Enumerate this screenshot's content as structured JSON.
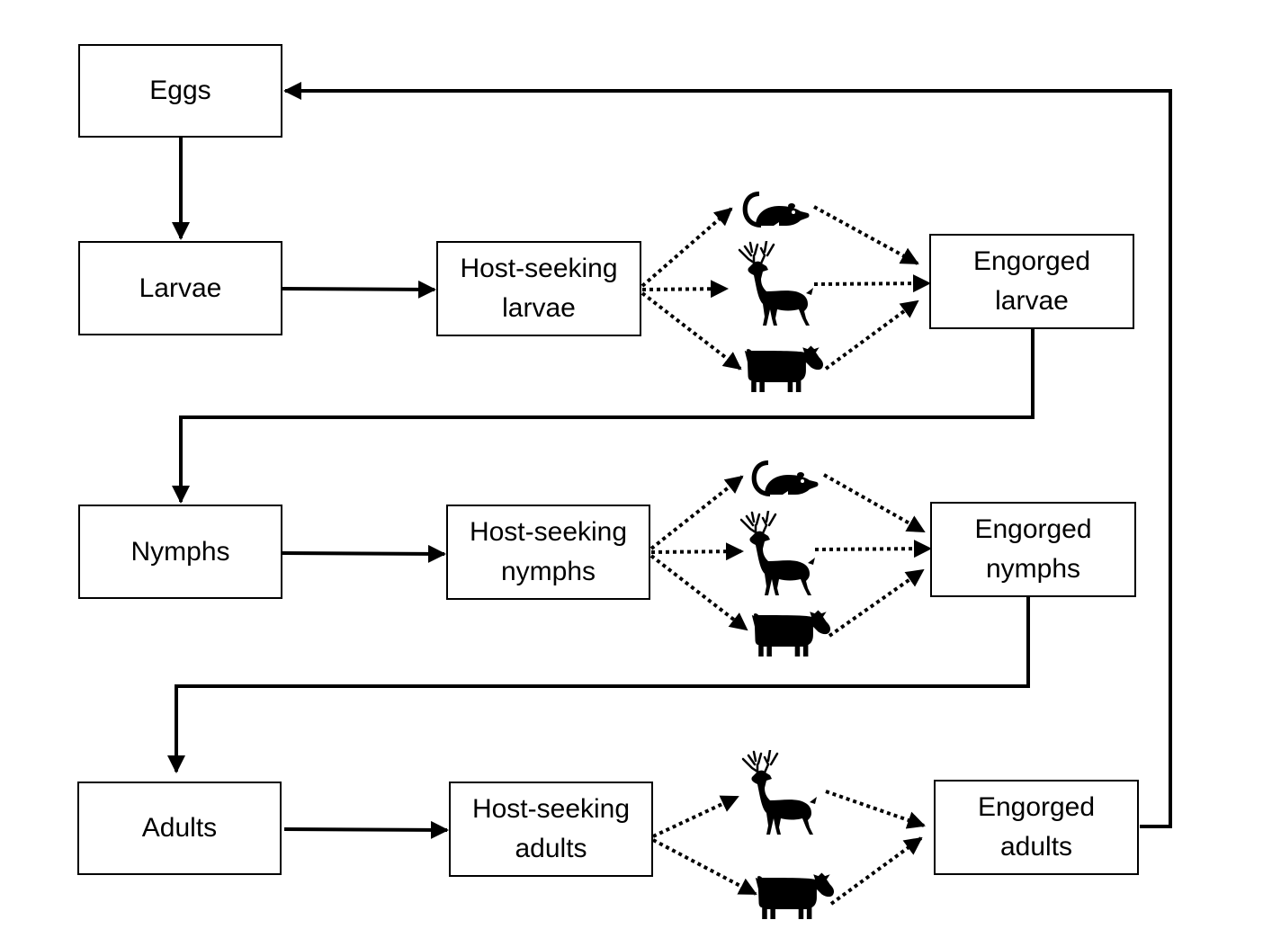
{
  "nodes": {
    "eggs": "Eggs",
    "larvae": "Larvae",
    "nymphs": "Nymphs",
    "adults": "Adults",
    "hs_larvae": [
      "Host-seeking",
      "larvae"
    ],
    "hs_nymphs": [
      "Host-seeking",
      "nymphs"
    ],
    "hs_adults": [
      "Host-seeking",
      "adults"
    ],
    "eng_larvae": [
      "Engorged",
      "larvae"
    ],
    "eng_nymphs": [
      "Engorged",
      "nymphs"
    ],
    "eng_adults": [
      "Engorged",
      "adults"
    ]
  },
  "hosts": {
    "larvae_stage": [
      "rodent-icon",
      "deer-icon",
      "cow-icon"
    ],
    "nymphs_stage": [
      "rodent-icon",
      "deer-icon",
      "cow-icon"
    ],
    "adults_stage": [
      "deer-icon",
      "cow-icon"
    ]
  },
  "colors": {
    "line": "#000000",
    "box_border": "#000000",
    "background": "#ffffff"
  }
}
